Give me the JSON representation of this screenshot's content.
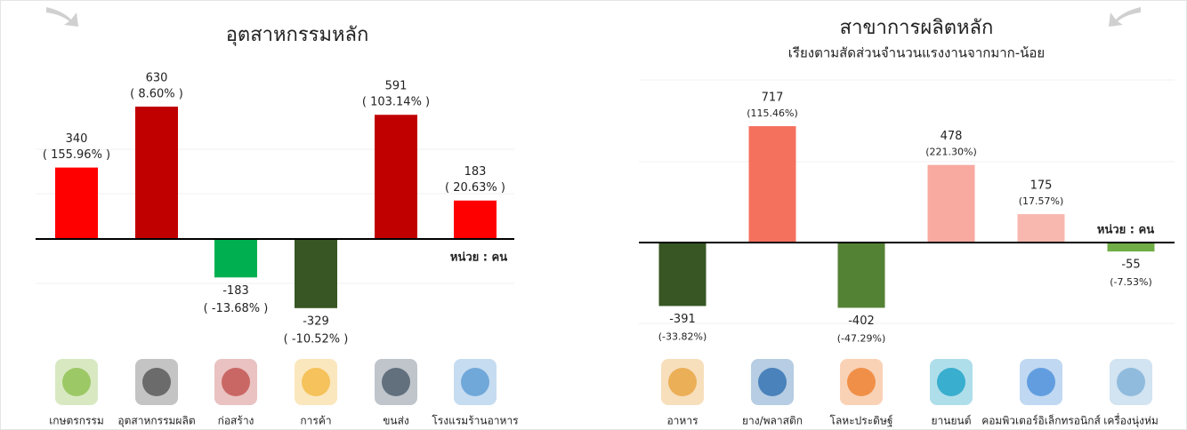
{
  "chart_data": [
    {
      "type": "bar",
      "title": "อุตสาหกรรมหลัก",
      "categories": [
        "เกษตรกรรม",
        "อุตสาหกรรมผลิต",
        "ก่อสร้าง",
        "การค้า",
        "ขนส่ง",
        "โรงแรมร้านอาหาร"
      ],
      "values": [
        340,
        630,
        -183,
        -329,
        591,
        183
      ],
      "percent_labels": [
        "( 155.96% )",
        "( 8.60% )",
        "( -13.68% )",
        "( -10.52% )",
        "( 103.14% )",
        "( 20.63% )"
      ],
      "colors": [
        "#ff0000",
        "#c00000",
        "#00b050",
        "#375623",
        "#c00000",
        "#ff0000"
      ],
      "unit_label": "หน่วย : คน",
      "ylim": [
        -450,
        700
      ]
    },
    {
      "type": "bar",
      "title": "สาขาการผลิตหลัก",
      "subtitle": "เรียงตามสัดส่วนจำนวนแรงงานจากมาก-น้อย",
      "categories": [
        "อาหาร",
        "ยาง/พลาสติก",
        "โลหะประดิษฐ์",
        "ยานยนต์",
        "คอมพิวเตอร์อิเล็กทรอนิกส์",
        "เครื่องนุ่งห่ม"
      ],
      "values": [
        -391,
        717,
        -402,
        478,
        175,
        -55
      ],
      "percent_labels": [
        "(-33.82%)",
        "(115.46%)",
        "(-47.29%)",
        "(221.30%)",
        "(17.57%)",
        "(-7.53%)"
      ],
      "colors": [
        "#375623",
        "#f4715e",
        "#548235",
        "#f8a9a0",
        "#f8b8b0",
        "#70ad47"
      ],
      "unit_label": "หน่วย : คน",
      "ylim": [
        -500,
        1000
      ]
    }
  ]
}
